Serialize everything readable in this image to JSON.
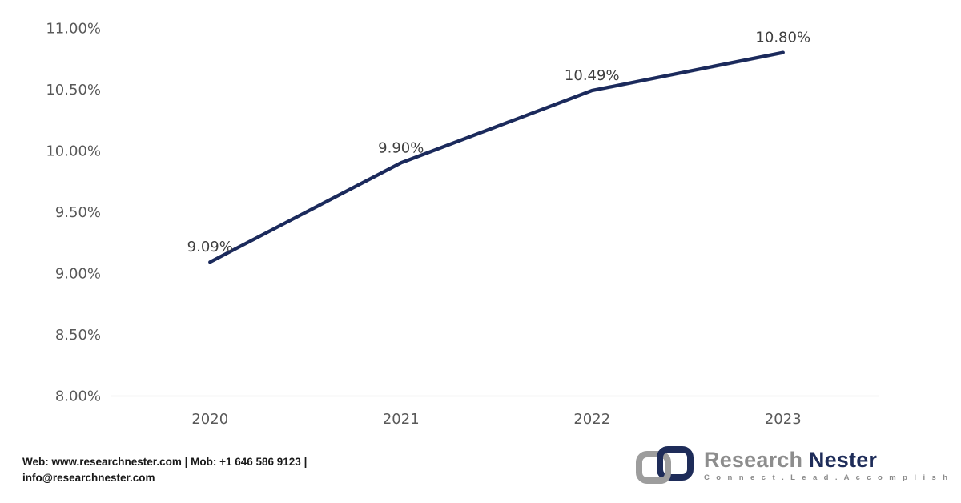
{
  "chart_data": {
    "type": "line",
    "categories": [
      "2020",
      "2021",
      "2022",
      "2023"
    ],
    "values": [
      9.09,
      9.9,
      10.49,
      10.8
    ],
    "point_labels": [
      "9.09%",
      "9.90%",
      "10.49%",
      "10.80%"
    ],
    "y_ticks": [
      "11.00%",
      "10.50%",
      "10.00%",
      "9.50%",
      "9.00%",
      "8.50%",
      "8.00%"
    ],
    "y_tick_values": [
      11.0,
      10.5,
      10.0,
      9.5,
      9.0,
      8.5,
      8.0
    ],
    "ylim": [
      8.0,
      11.0
    ],
    "title": "",
    "xlabel": "",
    "ylabel": "",
    "grid": false,
    "legend": "none",
    "line_color": "#1b2a5c"
  },
  "colors": {
    "axis_line": "#d6d6d6",
    "axis_label": "#595959",
    "data_label": "#3f3f3f"
  },
  "footer": {
    "contact_line1": "Web: www.researchnester.com  | Mob: +1 646 586 9123 |",
    "contact_line2": "info@researchnester.com",
    "logo": {
      "brand_first": "Research",
      "brand_second": "Nester",
      "tagline": "C o n n e c t .   L e a d .   A c c o m p l i s h",
      "gray": "#9d9d9d",
      "navy": "#1e2c59"
    }
  }
}
